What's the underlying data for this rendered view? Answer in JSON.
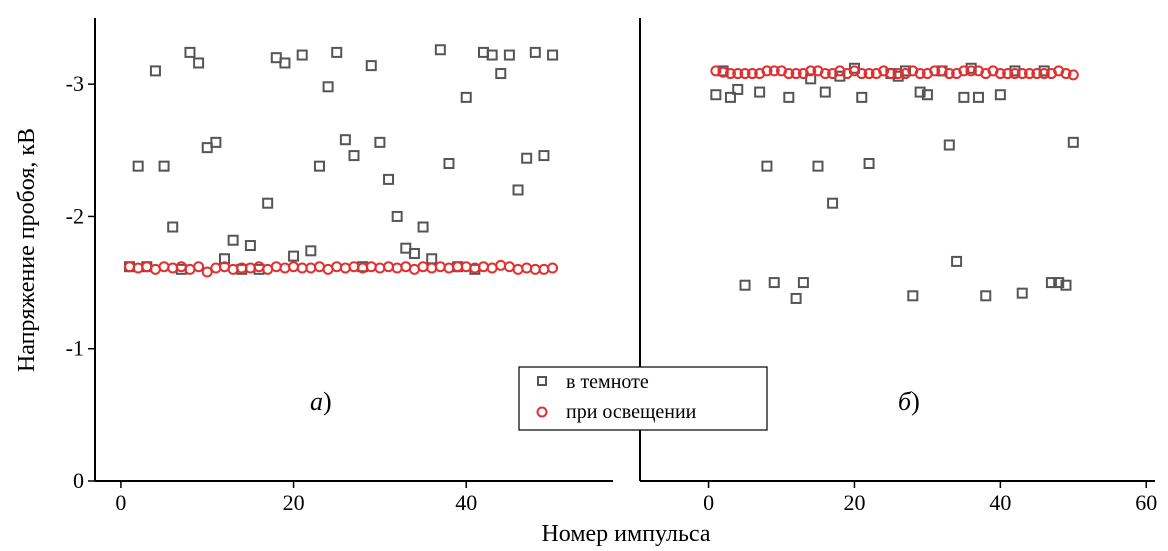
{
  "colors": {
    "dark_series": "#555555",
    "lit_series": "#e03030"
  },
  "labels": {
    "ylabel": "Напряжение пробоя, кВ",
    "xlabel": "Номер импульса",
    "panel_a_letter": "а",
    "panel_b_letter": "б",
    "panel_paren": ")"
  },
  "legend": {
    "dark": "в темноте",
    "lit": "при освещении",
    "position": "bottom-center"
  },
  "chart_data": [
    {
      "type": "scatter",
      "panel": "а)",
      "xlabel": "Номер импульса",
      "ylabel": "Напряжение пробоя, кВ",
      "xlim": [
        -3,
        57
      ],
      "ylim": [
        0,
        -3.5
      ],
      "xticks": [
        0,
        20,
        40
      ],
      "yticks": [
        0,
        -1,
        -2,
        -3
      ],
      "xtick_labels": [
        "0",
        "20",
        "40"
      ],
      "ytick_labels": [
        "0",
        "-1",
        "-2",
        "-3"
      ],
      "series": [
        {
          "name": "в темноте",
          "marker": "square",
          "x": [
            1,
            2,
            3,
            4,
            5,
            6,
            7,
            8,
            9,
            10,
            11,
            12,
            13,
            14,
            15,
            16,
            17,
            18,
            19,
            20,
            21,
            22,
            23,
            24,
            25,
            26,
            27,
            28,
            29,
            30,
            31,
            32,
            33,
            34,
            35,
            36,
            37,
            38,
            39,
            40,
            41,
            42,
            43,
            44,
            45,
            46,
            47,
            48,
            49,
            50
          ],
          "y": [
            -1.62,
            -2.38,
            -1.62,
            -3.1,
            -2.38,
            -1.92,
            -1.6,
            -3.24,
            -3.16,
            -2.52,
            -2.56,
            -1.68,
            -1.82,
            -1.6,
            -1.78,
            -1.6,
            -2.1,
            -3.2,
            -3.16,
            -1.7,
            -3.22,
            -1.74,
            -2.38,
            -2.98,
            -3.24,
            -2.58,
            -2.46,
            -1.62,
            -3.14,
            -2.56,
            -2.28,
            -2.0,
            -1.76,
            -1.72,
            -1.92,
            -1.68,
            -3.26,
            -2.4,
            -1.62,
            -2.9,
            -1.6,
            -3.24,
            -3.22,
            -3.08,
            -3.22,
            -2.2,
            -2.44,
            -3.24,
            -2.46,
            -3.22
          ]
        },
        {
          "name": "при освещении",
          "marker": "circle",
          "x": [
            1,
            2,
            3,
            4,
            5,
            6,
            7,
            8,
            9,
            10,
            11,
            12,
            13,
            14,
            15,
            16,
            17,
            18,
            19,
            20,
            21,
            22,
            23,
            24,
            25,
            26,
            27,
            28,
            29,
            30,
            31,
            32,
            33,
            34,
            35,
            36,
            37,
            38,
            39,
            40,
            41,
            42,
            43,
            44,
            45,
            46,
            47,
            48,
            49,
            50
          ],
          "y": [
            -1.62,
            -1.61,
            -1.62,
            -1.6,
            -1.62,
            -1.61,
            -1.62,
            -1.6,
            -1.62,
            -1.58,
            -1.61,
            -1.62,
            -1.6,
            -1.61,
            -1.61,
            -1.62,
            -1.6,
            -1.62,
            -1.61,
            -1.62,
            -1.61,
            -1.61,
            -1.62,
            -1.6,
            -1.62,
            -1.61,
            -1.62,
            -1.61,
            -1.62,
            -1.61,
            -1.62,
            -1.61,
            -1.62,
            -1.6,
            -1.62,
            -1.61,
            -1.62,
            -1.61,
            -1.62,
            -1.62,
            -1.61,
            -1.62,
            -1.61,
            -1.63,
            -1.62,
            -1.6,
            -1.61,
            -1.6,
            -1.6,
            -1.61
          ]
        }
      ]
    },
    {
      "type": "scatter",
      "panel": "б)",
      "xlabel": "Номер импульса",
      "ylabel": "",
      "xlim": [
        -9.4,
        61.2
      ],
      "ylim": [
        0,
        -3.5
      ],
      "xticks": [
        0,
        20,
        40,
        60
      ],
      "yticks": [],
      "xtick_labels": [
        "0",
        "20",
        "40",
        "60"
      ],
      "series": [
        {
          "name": "в темноте",
          "marker": "square",
          "x": [
            1,
            2,
            3,
            4,
            5,
            7,
            8,
            9,
            11,
            12,
            13,
            14,
            15,
            16,
            17,
            18,
            20,
            21,
            22,
            25,
            26,
            27,
            28,
            29,
            30,
            32,
            33,
            34,
            35,
            36,
            37,
            38,
            40,
            42,
            43,
            46,
            47,
            48,
            49,
            50
          ],
          "y": [
            -2.92,
            -3.1,
            -2.9,
            -2.96,
            -1.48,
            -2.94,
            -2.38,
            -1.5,
            -2.9,
            -1.38,
            -1.5,
            -3.04,
            -2.38,
            -2.94,
            -2.1,
            -3.06,
            -3.12,
            -2.9,
            -2.4,
            -3.08,
            -3.06,
            -3.1,
            -1.4,
            -2.94,
            -2.92,
            -3.1,
            -2.54,
            -1.66,
            -2.9,
            -3.12,
            -2.9,
            -1.4,
            -2.92,
            -3.1,
            -1.42,
            -3.1,
            -1.5,
            -1.5,
            -1.48,
            -2.56
          ]
        },
        {
          "name": "при освещении",
          "marker": "circle",
          "x": [
            1,
            2,
            3,
            4,
            5,
            6,
            7,
            8,
            9,
            10,
            11,
            12,
            13,
            14,
            15,
            16,
            17,
            18,
            19,
            20,
            21,
            22,
            23,
            24,
            25,
            26,
            27,
            28,
            29,
            30,
            31,
            32,
            33,
            34,
            35,
            36,
            37,
            38,
            39,
            40,
            41,
            42,
            43,
            44,
            45,
            46,
            47,
            48,
            49,
            50
          ],
          "y": [
            -3.1,
            -3.09,
            -3.08,
            -3.08,
            -3.08,
            -3.08,
            -3.08,
            -3.1,
            -3.1,
            -3.1,
            -3.08,
            -3.08,
            -3.08,
            -3.1,
            -3.1,
            -3.08,
            -3.08,
            -3.1,
            -3.08,
            -3.1,
            -3.08,
            -3.08,
            -3.08,
            -3.1,
            -3.08,
            -3.08,
            -3.08,
            -3.1,
            -3.08,
            -3.08,
            -3.1,
            -3.1,
            -3.08,
            -3.08,
            -3.1,
            -3.1,
            -3.1,
            -3.08,
            -3.1,
            -3.08,
            -3.08,
            -3.08,
            -3.08,
            -3.08,
            -3.08,
            -3.08,
            -3.08,
            -3.1,
            -3.08,
            -3.07
          ]
        }
      ]
    }
  ]
}
